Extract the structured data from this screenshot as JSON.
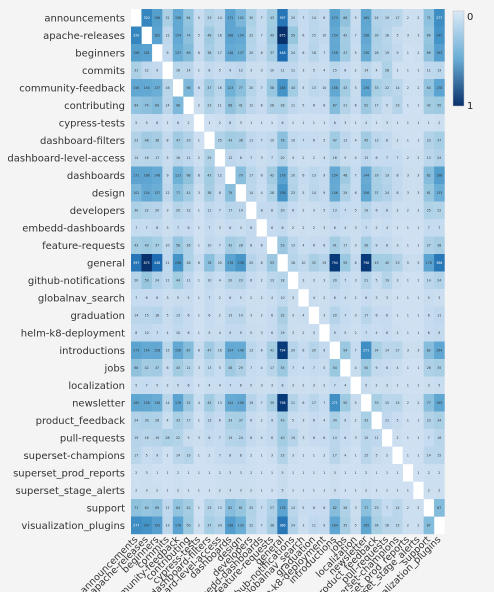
{
  "chart_data": {
    "type": "heatmap",
    "title": "",
    "xlabel": "",
    "ylabel": "",
    "labels": [
      "announcements",
      "apache-releases",
      "beginners",
      "commits",
      "community-feedback",
      "contributing",
      "cypress-tests",
      "dashboard-filters",
      "dashboard-level-access",
      "dashboards",
      "design",
      "developers",
      "embedd-dashboards",
      "feature-requests",
      "general",
      "github-notifications",
      "globalnav_search",
      "graduation",
      "helm-k8-deployment",
      "introductions",
      "jobs",
      "localization",
      "newsletter",
      "product_feedback",
      "pull-requests",
      "superset-champions",
      "superset_prod_reports",
      "superset_stage_alerts",
      "support",
      "visualization_plugins"
    ],
    "colorbar": {
      "min_label": "0",
      "max_label": "1"
    },
    "diagonal": "blank",
    "values": [
      [
        0,
        320,
        196,
        31,
        156,
        64,
        5,
        23,
        14,
        171,
        102,
        30,
        7,
        43,
        397,
        20,
        7,
        14,
        8,
        173,
        68,
        5,
        165,
        24,
        19,
        17,
        2,
        2,
        71,
        277
      ],
      [
        320,
        0,
        181,
        12,
        154,
        74,
        5,
        48,
        16,
        168,
        154,
        22,
        7,
        49,
        875,
        59,
        6,
        15,
        10,
        154,
        42,
        7,
        158,
        30,
        16,
        5,
        3,
        3,
        60,
        247
      ],
      [
        196,
        181,
        0,
        9,
        137,
        89,
        6,
        38,
        17,
        148,
        137,
        20,
        8,
        37,
        448,
        24,
        6,
        18,
        7,
        158,
        47,
        5,
        138,
        26,
        19,
        9,
        1,
        2,
        69,
        193
      ],
      [
        31,
        12,
        9,
        0,
        16,
        14,
        1,
        8,
        5,
        9,
        12,
        3,
        3,
        10,
        11,
        11,
        3,
        5,
        4,
        15,
        6,
        2,
        14,
        4,
        28,
        1,
        1,
        1,
        11,
        13
      ],
      [
        156,
        154,
        137,
        16,
        0,
        98,
        6,
        47,
        16,
        123,
        77,
        20,
        7,
        58,
        248,
        44,
        5,
        13,
        10,
        158,
        43,
        5,
        176,
        33,
        22,
        14,
        2,
        2,
        64,
        178
      ],
      [
        64,
        74,
        89,
        14,
        98,
        0,
        2,
        23,
        11,
        68,
        41,
        12,
        6,
        26,
        28,
        11,
        5,
        6,
        6,
        87,
        21,
        6,
        52,
        17,
        5,
        19,
        1,
        1,
        42,
        50
      ],
      [
        5,
        5,
        6,
        1,
        6,
        2,
        0,
        1,
        2,
        8,
        3,
        1,
        1,
        1,
        6,
        1,
        1,
        1,
        1,
        6,
        3,
        1,
        4,
        1,
        3,
        1,
        1,
        1,
        1,
        2
      ],
      [
        23,
        48,
        38,
        8,
        47,
        23,
        1,
        0,
        25,
        43,
        38,
        11,
        7,
        10,
        78,
        10,
        7,
        6,
        5,
        47,
        13,
        4,
        45,
        13,
        8,
        2,
        1,
        1,
        23,
        37
      ],
      [
        14,
        16,
        17,
        5,
        16,
        11,
        2,
        25,
        0,
        12,
        8,
        7,
        3,
        7,
        20,
        4,
        2,
        2,
        4,
        16,
        5,
        4,
        13,
        6,
        7,
        7,
        2,
        2,
        13,
        24
      ],
      [
        171,
        168,
        148,
        9,
        123,
        68,
        8,
        43,
        12,
        0,
        79,
        17,
        6,
        42,
        178,
        20,
        6,
        13,
        9,
        154,
        48,
        7,
        144,
        33,
        19,
        8,
        3,
        3,
        82,
        198
      ],
      [
        102,
        154,
        137,
        12,
        77,
        41,
        3,
        38,
        8,
        79,
        0,
        14,
        4,
        28,
        238,
        23,
        5,
        14,
        9,
        146,
        29,
        6,
        156,
        37,
        24,
        8,
        3,
        3,
        61,
        133
      ],
      [
        30,
        22,
        20,
        3,
        20,
        12,
        1,
        11,
        7,
        17,
        14,
        0,
        8,
        8,
        20,
        6,
        2,
        3,
        5,
        13,
        7,
        5,
        19,
        6,
        8,
        2,
        2,
        2,
        25,
        22
      ],
      [
        7,
        7,
        8,
        3,
        7,
        6,
        1,
        7,
        3,
        6,
        4,
        8,
        0,
        6,
        8,
        2,
        2,
        2,
        3,
        6,
        4,
        3,
        7,
        2,
        4,
        1,
        1,
        1,
        7,
        7
      ],
      [
        43,
        49,
        37,
        10,
        58,
        26,
        1,
        10,
        7,
        42,
        28,
        8,
        6,
        0,
        53,
        13,
        4,
        6,
        6,
        41,
        17,
        3,
        39,
        9,
        8,
        3,
        1,
        1,
        27,
        38
      ],
      [
        397,
        875,
        448,
        11,
        248,
        28,
        6,
        78,
        20,
        178,
        238,
        20,
        8,
        53,
        0,
        18,
        10,
        32,
        19,
        794,
        55,
        8,
        798,
        43,
        40,
        23,
        5,
        5,
        178,
        386
      ],
      [
        20,
        59,
        24,
        11,
        44,
        11,
        1,
        10,
        4,
        20,
        23,
        6,
        2,
        13,
        18,
        0,
        3,
        3,
        3,
        20,
        7,
        3,
        21,
        5,
        19,
        3,
        1,
        1,
        14,
        24
      ],
      [
        7,
        6,
        6,
        3,
        5,
        5,
        1,
        7,
        2,
        6,
        5,
        2,
        2,
        4,
        10,
        3,
        0,
        4,
        2,
        6,
        4,
        2,
        6,
        3,
        3,
        1,
        1,
        1,
        5,
        3
      ],
      [
        14,
        15,
        18,
        5,
        13,
        6,
        1,
        6,
        2,
        13,
        14,
        3,
        2,
        6,
        32,
        3,
        4,
        0,
        3,
        20,
        7,
        3,
        17,
        6,
        6,
        1,
        1,
        1,
        6,
        11
      ],
      [
        8,
        10,
        7,
        4,
        10,
        6,
        1,
        5,
        4,
        9,
        9,
        5,
        3,
        6,
        19,
        3,
        2,
        3,
        0,
        9,
        5,
        2,
        7,
        4,
        6,
        2,
        1,
        1,
        6,
        9
      ],
      [
        173,
        154,
        158,
        15,
        158,
        87,
        6,
        47,
        16,
        154,
        146,
        13,
        6,
        41,
        794,
        20,
        6,
        20,
        9,
        0,
        54,
        7,
        271,
        34,
        14,
        17,
        3,
        3,
        82,
        164
      ],
      [
        68,
        42,
        47,
        6,
        43,
        21,
        3,
        13,
        5,
        48,
        29,
        7,
        4,
        17,
        55,
        7,
        4,
        7,
        5,
        54,
        0,
        4,
        50,
        9,
        6,
        4,
        1,
        1,
        26,
        35
      ],
      [
        5,
        7,
        5,
        2,
        5,
        6,
        1,
        4,
        4,
        7,
        6,
        5,
        3,
        3,
        8,
        3,
        2,
        3,
        2,
        7,
        4,
        0,
        5,
        2,
        3,
        1,
        1,
        1,
        3,
        5
      ],
      [
        165,
        158,
        138,
        14,
        176,
        52,
        4,
        45,
        13,
        144,
        156,
        19,
        7,
        39,
        798,
        21,
        6,
        17,
        7,
        271,
        50,
        5,
        0,
        33,
        15,
        15,
        2,
        2,
        77,
        165
      ],
      [
        24,
        30,
        26,
        4,
        33,
        17,
        1,
        13,
        6,
        33,
        37,
        6,
        2,
        9,
        43,
        5,
        3,
        6,
        4,
        34,
        9,
        2,
        33,
        0,
        11,
        5,
        1,
        1,
        23,
        34
      ],
      [
        19,
        16,
        19,
        28,
        22,
        5,
        3,
        8,
        7,
        19,
        24,
        8,
        4,
        8,
        40,
        19,
        3,
        6,
        6,
        14,
        6,
        3,
        15,
        11,
        0,
        2,
        1,
        1,
        7,
        16
      ],
      [
        17,
        5,
        9,
        1,
        14,
        19,
        1,
        2,
        7,
        8,
        8,
        2,
        1,
        3,
        23,
        3,
        1,
        1,
        2,
        17,
        4,
        1,
        15,
        5,
        2,
        0,
        1,
        1,
        14,
        15
      ],
      [
        2,
        3,
        1,
        1,
        2,
        1,
        1,
        1,
        2,
        3,
        3,
        2,
        1,
        1,
        5,
        1,
        1,
        1,
        1,
        3,
        1,
        1,
        2,
        1,
        1,
        1,
        0,
        1,
        2,
        2
      ],
      [
        2,
        3,
        2,
        1,
        2,
        1,
        1,
        1,
        2,
        3,
        3,
        2,
        1,
        1,
        5,
        1,
        1,
        1,
        1,
        3,
        1,
        1,
        2,
        1,
        1,
        1,
        1,
        0,
        2,
        2
      ],
      [
        71,
        60,
        69,
        11,
        64,
        42,
        1,
        23,
        13,
        82,
        61,
        25,
        7,
        27,
        178,
        14,
        5,
        6,
        6,
        82,
        26,
        3,
        77,
        23,
        7,
        14,
        2,
        2,
        0,
        87
      ],
      [
        277,
        247,
        193,
        13,
        178,
        50,
        2,
        37,
        24,
        198,
        133,
        22,
        7,
        38,
        386,
        24,
        3,
        11,
        9,
        164,
        35,
        5,
        165,
        34,
        16,
        15,
        2,
        2,
        87,
        0
      ]
    ]
  }
}
